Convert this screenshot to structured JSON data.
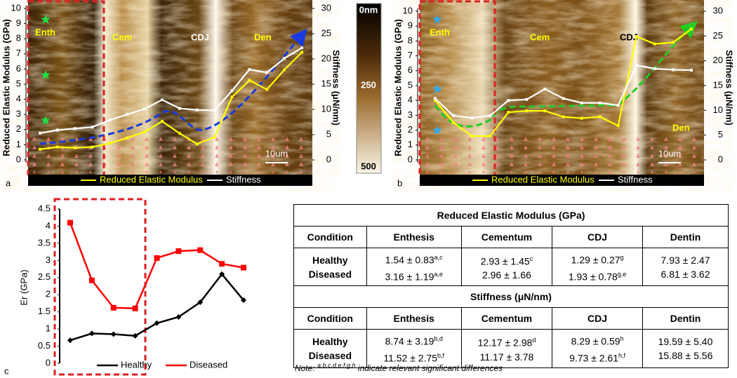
{
  "chart_data": [
    {
      "type": "line",
      "label": "a",
      "ylabel": "Reduced Elastic Modulus (GPa)",
      "y2label": "Stiffness (μN/nm)",
      "categories": [
        null,
        null,
        null,
        null,
        null,
        null,
        null,
        null,
        null,
        null,
        null,
        null,
        null,
        null,
        null,
        null
      ],
      "ylim": [
        0,
        10
      ],
      "yticks": [
        0,
        1,
        2,
        3,
        4,
        5,
        6,
        7,
        8,
        9,
        10
      ],
      "y2lim": [
        0,
        30
      ],
      "y2ticks": [
        0,
        5,
        10,
        15,
        20,
        25,
        30
      ],
      "series": [
        {
          "name": "Reduced Elastic Modulus",
          "color": "#ffff00",
          "values": [
            0.7,
            0.85,
            0.8,
            0.85,
            1.1,
            1.45,
            1.85,
            2.55,
            1.75,
            1.05,
            1.5,
            4.15,
            5.25,
            4.65,
            5.95,
            7.1
          ]
        },
        {
          "name": "Stiffness",
          "color": "#ffffff",
          "axis": "y2",
          "values": [
            5.3,
            5.9,
            6.2,
            6.5,
            7.9,
            9.0,
            10.1,
            11.9,
            10.2,
            9.9,
            9.8,
            13.7,
            17.9,
            17.3,
            20.1,
            22.2
          ]
        }
      ],
      "annotations": [
        "Enth",
        "Cem",
        "CDJ",
        "Den"
      ],
      "scale_bar": "10um",
      "colorbar_labels": [
        "0nm",
        "250",
        "500"
      ]
    },
    {
      "type": "line",
      "label": "b",
      "ylabel": "Reduced Elastic Modulus (GPa)",
      "y2label": "Stiffness (μN/nm)",
      "categories": [
        null,
        null,
        null,
        null,
        null,
        null,
        null,
        null,
        null,
        null,
        null,
        null,
        null,
        null,
        null
      ],
      "ylim": [
        0,
        10
      ],
      "yticks": [
        0,
        1,
        2,
        3,
        4,
        5,
        6,
        7,
        8,
        9,
        10
      ],
      "y2lim": [
        0,
        30
      ],
      "y2ticks": [
        0,
        5,
        10,
        15,
        20,
        25,
        30
      ],
      "series": [
        {
          "name": "Reduced Elastic Modulus",
          "color": "#ffff00",
          "values": [
            4.0,
            2.5,
            1.6,
            1.6,
            3.2,
            3.3,
            3.3,
            2.9,
            2.8,
            2.9,
            2.3,
            8.3,
            7.8,
            7.9,
            8.8
          ]
        },
        {
          "name": "Stiffness",
          "color": "#ffffff",
          "axis": "y2",
          "values": [
            12.4,
            8.9,
            8.5,
            8.9,
            12.0,
            12.2,
            14.3,
            12.4,
            11.5,
            11.5,
            11.0,
            19.1,
            18.4,
            18.2,
            18.1
          ]
        }
      ],
      "annotations": [
        "Enth",
        "Cem",
        "CDJ",
        "Den"
      ],
      "scale_bar": "10um"
    },
    {
      "type": "line",
      "label": "c",
      "ylabel": "Er (GPa)",
      "categories": [
        null,
        null,
        null,
        null,
        null,
        null,
        null,
        null,
        null
      ],
      "ylim": [
        0,
        4.5
      ],
      "yticks": [
        0,
        0.5,
        1,
        1.5,
        2,
        2.5,
        3,
        3.5,
        4,
        4.5
      ],
      "series": [
        {
          "name": "Healthy",
          "color": "#000000",
          "values": [
            0.67,
            0.87,
            0.85,
            0.8,
            1.17,
            1.35,
            1.78,
            2.6,
            1.84
          ]
        },
        {
          "name": "Diseased",
          "color": "#ff0000",
          "values": [
            4.1,
            2.42,
            1.62,
            1.6,
            3.07,
            3.27,
            3.3,
            2.9,
            2.79
          ]
        }
      ]
    }
  ],
  "table": {
    "sections": [
      {
        "title": "Reduced Elastic Modulus (GPa)",
        "columns": [
          "Condition",
          "Enthesis",
          "Cementum",
          "CDJ",
          "Dentin"
        ],
        "rows": [
          [
            {
              "text": "Healthy"
            },
            {
              "text": "1.54 ± 0.83",
              "sup": "a,c"
            },
            {
              "text": "2.93 ± 1.45",
              "sup": "c"
            },
            {
              "text": "1.29 ± 0.27",
              "sup": "g"
            },
            {
              "text": "7.93 ± 2.47"
            }
          ],
          [
            {
              "text": "Diseased"
            },
            {
              "text": "3.16 ± 1.19",
              "sup": "a,e"
            },
            {
              "text": "2.96 ± 1.66"
            },
            {
              "text": "1.93 ± 0.78",
              "sup": "g,e"
            },
            {
              "text": "6.81 ± 3.62"
            }
          ]
        ]
      },
      {
        "title": "Stiffness (μN/nm)",
        "columns": [
          "Condition",
          "Enthesis",
          "Cementum",
          "CDJ",
          "Dentin"
        ],
        "rows": [
          [
            {
              "text": "Healthy"
            },
            {
              "text": "8.74 ± 3.19",
              "sup": "b,d"
            },
            {
              "text": "12.17 ± 2.98",
              "sup": "d"
            },
            {
              "text": "8.29 ± 0.59",
              "sup": "h"
            },
            {
              "text": "19.59 ± 5.40"
            }
          ],
          [
            {
              "text": "Diseased"
            },
            {
              "text": "11.52 ± 2.75",
              "sup": "b,f"
            },
            {
              "text": "11.17 ± 3.78"
            },
            {
              "text": "9.73 ± 2.61",
              "sup": "h,f"
            },
            {
              "text": "15.88 ± 5.56"
            }
          ]
        ]
      }
    ],
    "note": {
      "lead": "Note:",
      "sup": "a,b,c,d,e,f,g,h",
      "text": "indicate relevant significant differences"
    }
  }
}
